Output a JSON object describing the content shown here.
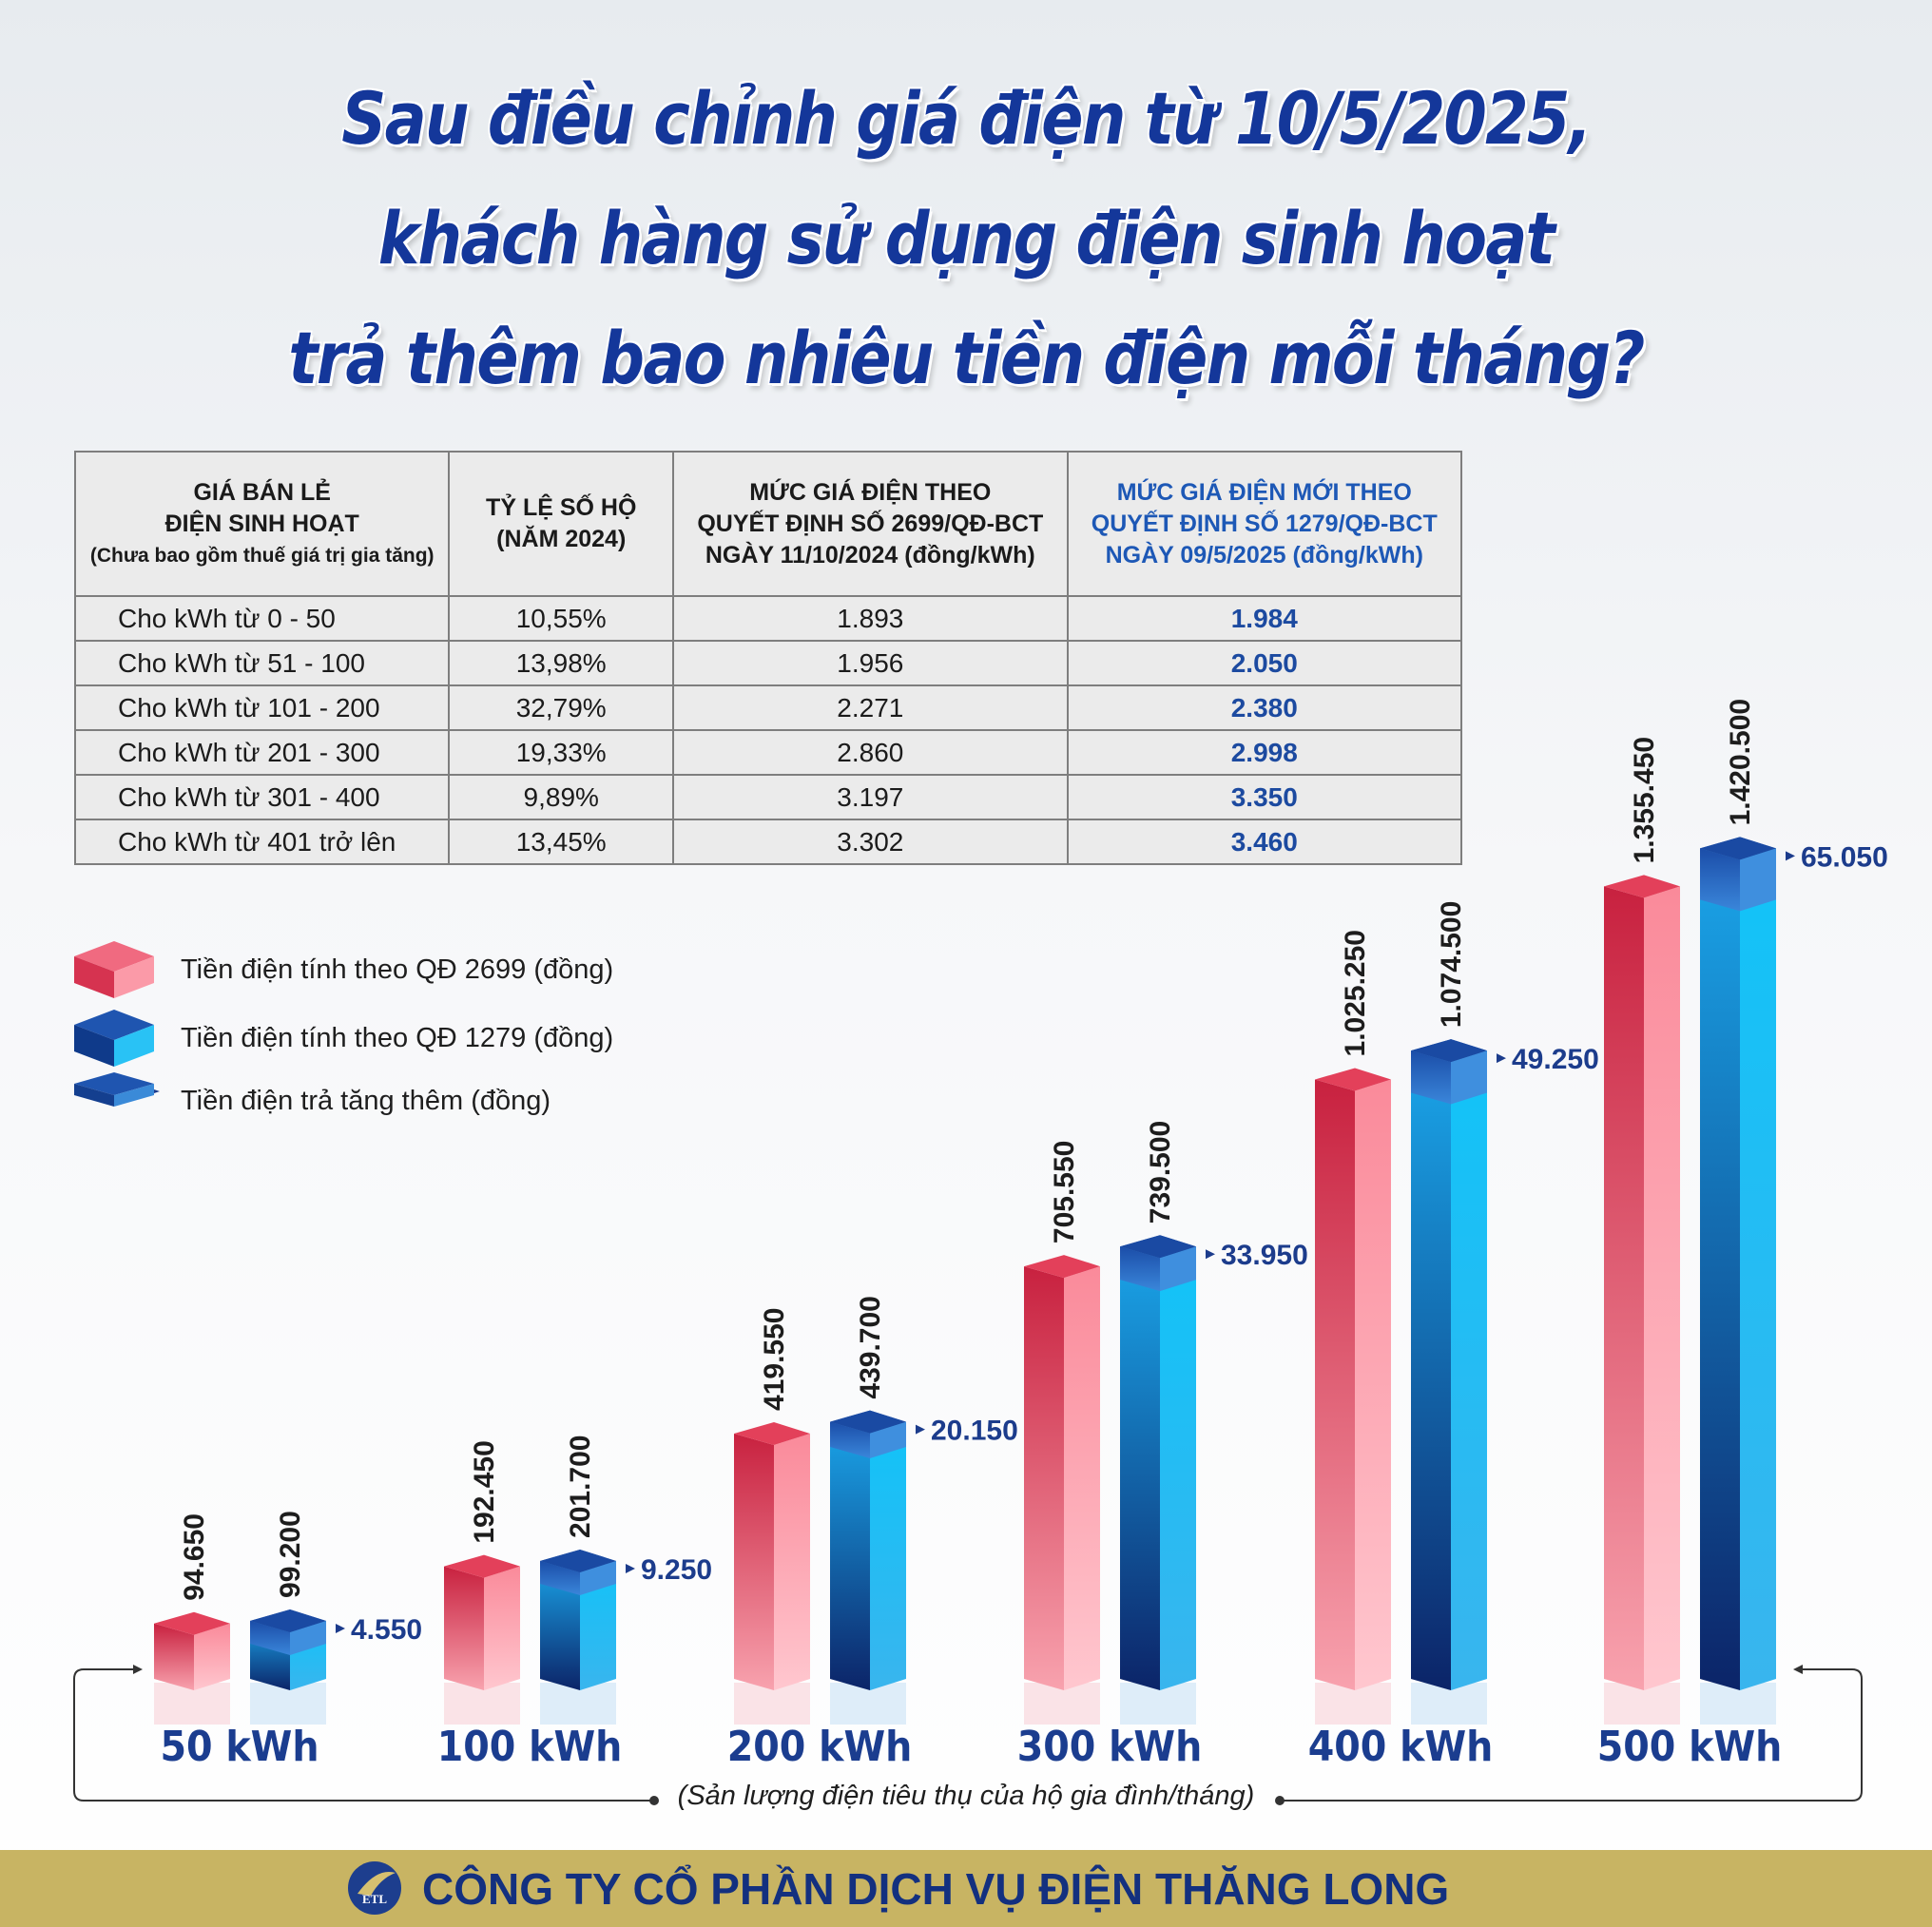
{
  "title_lines": [
    "Sau điều chỉnh giá điện từ 10/5/2025,",
    "khách hàng sử dụng điện sinh hoạt",
    "trả thêm bao nhiêu tiền điện mỗi tháng?"
  ],
  "table": {
    "headers": {
      "col1": [
        "GIÁ BÁN LẺ",
        "ĐIỆN SINH HOẠT"
      ],
      "col1_note": "(Chưa bao gồm thuế giá trị gia tăng)",
      "col2": [
        "TỶ LỆ SỐ HỘ",
        "(NĂM 2024)"
      ],
      "col3": [
        "MỨC GIÁ ĐIỆN THEO",
        "QUYẾT ĐỊNH SỐ 2699/QĐ-BCT",
        "NGÀY 11/10/2024 (đồng/kWh)"
      ],
      "col4": [
        "MỨC GIÁ ĐIỆN MỚI THEO",
        "QUYẾT ĐỊNH SỐ 1279/QĐ-BCT",
        "NGÀY 09/5/2025 (đồng/kWh)"
      ]
    },
    "rows": [
      {
        "tier": "Cho kWh từ 0 - 50",
        "share": "10,55%",
        "old": "1.893",
        "new": "1.984"
      },
      {
        "tier": "Cho kWh từ  51 - 100",
        "share": "13,98%",
        "old": "1.956",
        "new": "2.050"
      },
      {
        "tier": "Cho kWh từ 101 - 200",
        "share": "32,79%",
        "old": "2.271",
        "new": "2.380"
      },
      {
        "tier": "Cho kWh từ 201 - 300",
        "share": "19,33%",
        "old": "2.860",
        "new": "2.998"
      },
      {
        "tier": "Cho kWh từ 301 - 400",
        "share": "9,89%",
        "old": "3.197",
        "new": "3.350"
      },
      {
        "tier": "Cho kWh từ 401 trở lên",
        "share": "13,45%",
        "old": "3.302",
        "new": "3.460"
      }
    ]
  },
  "legend": [
    "Tiền điện tính theo QĐ 2699 (đồng)",
    "Tiền điện tính theo QĐ 1279 (đồng)",
    "Tiền điện trả tăng thêm (đồng)"
  ],
  "chart_data": {
    "type": "bar",
    "categories": [
      "50 kWh",
      "100 kWh",
      "200 kWh",
      "300 kWh",
      "400 kWh",
      "500 kWh"
    ],
    "series": [
      {
        "name": "Tiền điện tính theo QĐ 2699 (đồng)",
        "values": [
          94650,
          192450,
          419550,
          705550,
          1025250,
          1355450
        ],
        "labels": [
          "94.650",
          "192.450",
          "419.550",
          "705.550",
          "1.025.250",
          "1.355.450"
        ]
      },
      {
        "name": "Tiền điện tính theo QĐ 1279 (đồng)",
        "values": [
          99200,
          201700,
          439700,
          739500,
          1074500,
          1420500
        ],
        "labels": [
          "99.200",
          "201.700",
          "439.700",
          "739.500",
          "1.074.500",
          "1.420.500"
        ]
      },
      {
        "name": "Tiền điện trả tăng thêm (đồng)",
        "values": [
          4550,
          9250,
          20150,
          33950,
          49250,
          65050
        ],
        "labels": [
          "4.550",
          "9.250",
          "20.150",
          "33.950",
          "49.250",
          "65.050"
        ]
      }
    ],
    "xlabel": "(Sản lượng điện tiêu thụ của hộ gia đình/tháng)",
    "colors": {
      "old": "#e0435e",
      "new": "#1fa8ec",
      "increase": "#1f5fbf",
      "value_label": "#1c3c8c",
      "category_label": "#1b3d8f"
    }
  },
  "footer": {
    "logo_text": "ETL",
    "company": "CÔNG TY CỔ PHẦN DỊCH VỤ ĐIỆN THĂNG LONG"
  }
}
